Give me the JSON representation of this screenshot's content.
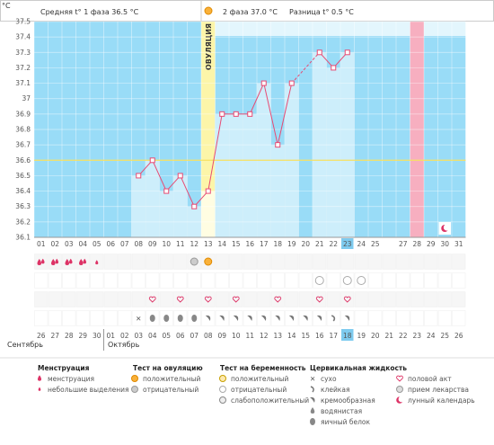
{
  "header": {
    "degree_unit": "°C",
    "phase1_label": "Средняя t° 1 фаза 36.5 °C",
    "phase2_label": "2 фаза 37.0 °C",
    "diff_label": "Разница t° 0.5 °C"
  },
  "ovulation_label": "ОВУЛЯЦИЯ",
  "cycle_days": [
    "1",
    "2",
    "3",
    "4",
    "5",
    "6",
    "7",
    "8",
    "9",
    "10",
    "11",
    "12",
    "13",
    "14",
    "15",
    "16",
    "17",
    "18"
  ],
  "dates": [
    "01",
    "02",
    "03",
    "04",
    "05",
    "06",
    "07",
    "08",
    "09",
    "10",
    "11",
    "12",
    "13",
    "14",
    "15",
    "16",
    "17",
    "18",
    "19",
    "20",
    "21",
    "22",
    "23",
    "24",
    "25",
    "27",
    "28",
    "29",
    "30",
    "31"
  ],
  "bottom_dates": [
    "26",
    "27",
    "28",
    "29",
    "30",
    "01",
    "02",
    "03",
    "04",
    "05",
    "06",
    "07",
    "08",
    "09",
    "10",
    "11",
    "12",
    "13",
    "14",
    "15",
    "16",
    "17",
    "18",
    "19",
    "20",
    "21",
    "22",
    "23",
    "24",
    "25",
    "26"
  ],
  "bottom_red": [
    "01",
    "02",
    "08",
    "15",
    "16",
    "22",
    "23"
  ],
  "months": {
    "sep": "Сентябрь",
    "oct": "Октябрь"
  },
  "chart_data": {
    "type": "line",
    "ylabel": "°C",
    "ylim": [
      36.1,
      37.5
    ],
    "yticks": [
      36.1,
      36.2,
      36.3,
      36.4,
      36.5,
      36.6,
      36.7,
      36.8,
      36.9,
      37.0,
      37.1,
      37.2,
      37.3,
      37.4,
      37.5
    ],
    "ytick_labels": [
      "36.1",
      "36.2",
      "36.3",
      "36.4",
      "36.5",
      "36.6",
      "36.7",
      "36.8",
      "36.9",
      "37",
      "37.1",
      "37.2",
      "37.3",
      "37.4",
      "37.5"
    ],
    "x": [
      "08",
      "09",
      "10",
      "11",
      "12",
      "13",
      "14",
      "15",
      "16",
      "17",
      "18",
      "19",
      "21",
      "22",
      "23"
    ],
    "values": [
      36.5,
      36.6,
      36.4,
      36.5,
      36.3,
      36.4,
      36.9,
      36.9,
      36.9,
      37.1,
      36.7,
      37.1,
      37.3,
      37.2,
      37.3
    ],
    "reference_line": 36.6,
    "dashed_segment": [
      "19",
      "21"
    ]
  },
  "legend": {
    "menstruation": {
      "title": "Менструация",
      "items": [
        "менструация",
        "небольшие выделения"
      ]
    },
    "ovulation_test": {
      "title": "Тест на овуляцию",
      "items": [
        "положительный",
        "отрицательный"
      ]
    },
    "pregnancy_test": {
      "title": "Тест на беременность",
      "items": [
        "положительный",
        "отрицательный",
        "слабоположительный"
      ]
    },
    "cervical_fluid": {
      "title": "Цервикальная жидкость",
      "items": [
        "сухо",
        "клейкая",
        "кремообразная",
        "водянистая",
        "яичный белок"
      ]
    },
    "other": {
      "items": [
        "половой акт",
        "прием лекарства",
        "лунный календарь"
      ]
    }
  },
  "colors": {
    "plot_bg": "#99dcf7",
    "bar": "#cdeefb",
    "ovulation": "#fcf5a9",
    "highlight_day": "#f7afc0",
    "line": "#e84a73",
    "ref_line": "#f7e15f",
    "menstruation": "#dd3366"
  }
}
